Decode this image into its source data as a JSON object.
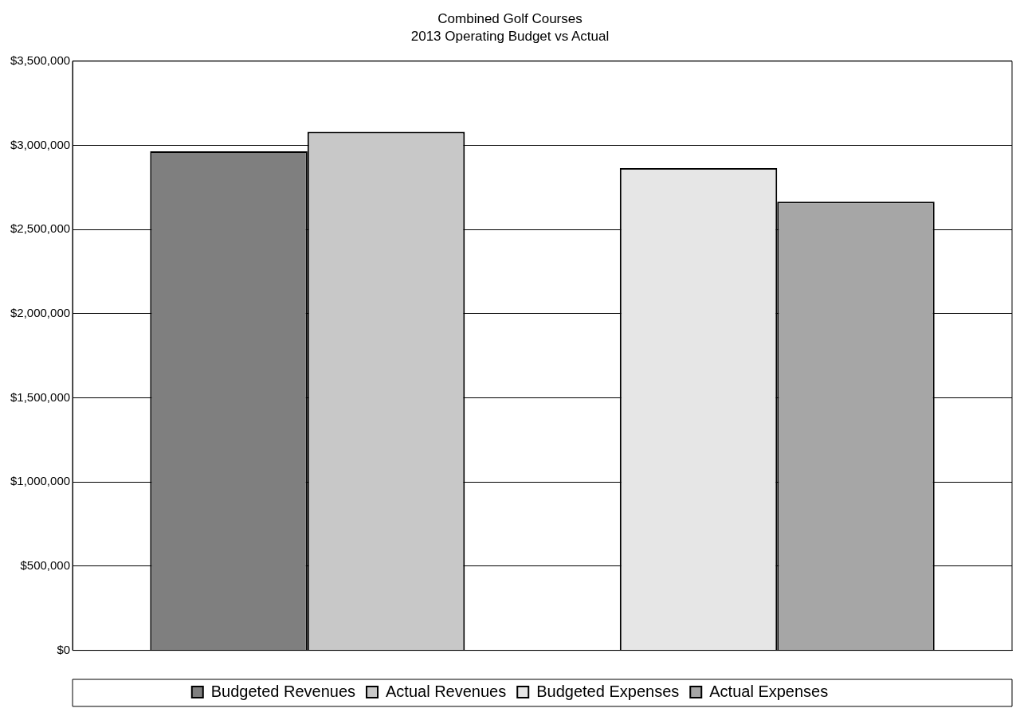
{
  "chart_data": {
    "type": "bar",
    "title": "Combined Golf Courses",
    "subtitle": "2013 Operating Budget vs Actual",
    "categories": [
      null,
      null
    ],
    "series": [
      {
        "name": "Budgeted Revenues",
        "color": "#7f7f7f",
        "values": [
          2965000,
          null
        ]
      },
      {
        "name": "Actual Revenues",
        "color": "#c8c8c8",
        "values": [
          3080000,
          null
        ]
      },
      {
        "name": "Budgeted Expenses",
        "color": "#e6e6e6",
        "values": [
          null,
          2865000
        ]
      },
      {
        "name": "Actual Expenses",
        "color": "#a6a6a6",
        "values": [
          null,
          2665000
        ]
      }
    ],
    "ylim": [
      0,
      3500000
    ],
    "yticks": [
      {
        "value": 0,
        "label": "$0"
      },
      {
        "value": 500000,
        "label": "$500,000"
      },
      {
        "value": 1000000,
        "label": "$1,000,000"
      },
      {
        "value": 1500000,
        "label": "$1,500,000"
      },
      {
        "value": 2000000,
        "label": "$2,000,000"
      },
      {
        "value": 2500000,
        "label": "$2,500,000"
      },
      {
        "value": 3000000,
        "label": "$3,000,000"
      },
      {
        "value": 3500000,
        "label": "$3,500,000"
      }
    ],
    "grid": "y",
    "legend": "bottom"
  }
}
